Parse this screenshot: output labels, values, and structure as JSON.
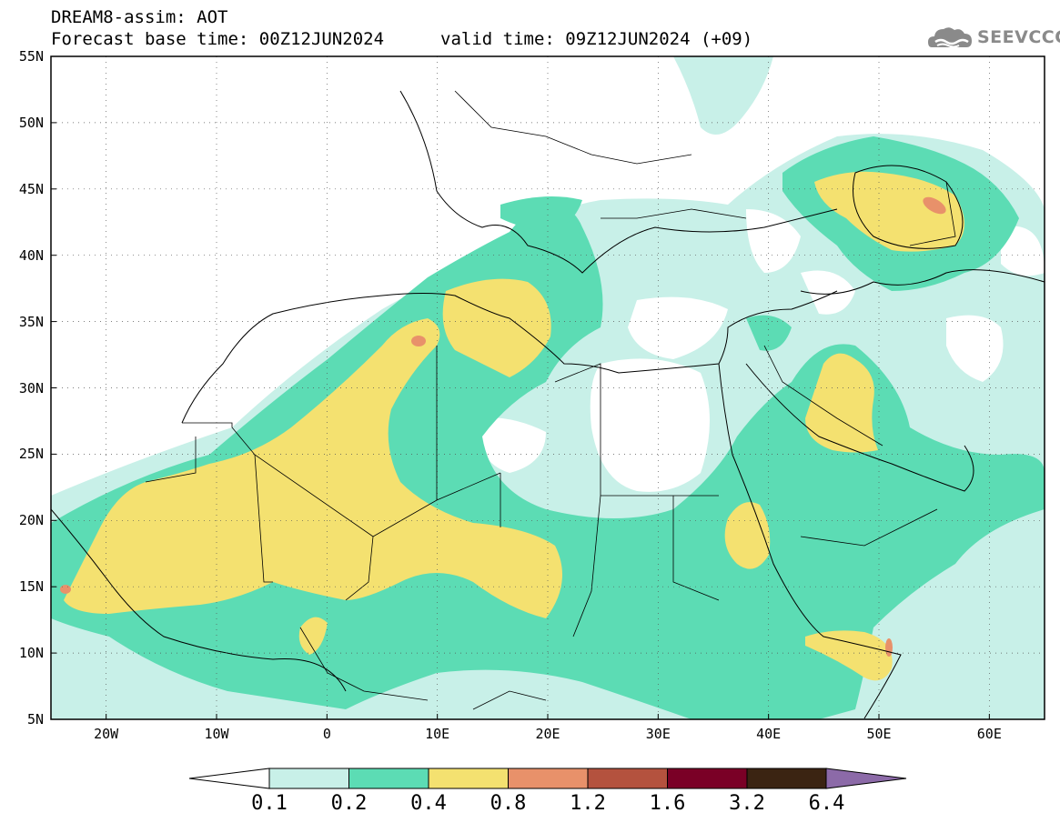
{
  "header": {
    "title": "DREAM8-assim: AOT",
    "base_time": "Forecast base time: 00Z12JUN2024",
    "valid_time": "valid time: 09Z12JUN2024 (+09)"
  },
  "logo": {
    "text": "SEEVCCC",
    "icon": "cloud-icon"
  },
  "axes": {
    "lat_labels": [
      "55N",
      "50N",
      "45N",
      "40N",
      "35N",
      "30N",
      "25N",
      "20N",
      "15N",
      "10N",
      "5N"
    ],
    "lon_labels": [
      "20W",
      "10W",
      "0",
      "10E",
      "20E",
      "30E",
      "40E",
      "50E",
      "60E"
    ]
  },
  "colorbar": {
    "labels": [
      "0.1",
      "0.2",
      "0.4",
      "0.8",
      "1.2",
      "1.6",
      "3.2",
      "6.4"
    ],
    "colors": [
      "#c8f0e8",
      "#5cdcb4",
      "#f4e170",
      "#e8916a",
      "#b4523e",
      "#7a0026",
      "#3b2412",
      "#8c6aa8"
    ]
  },
  "map_data": {
    "variable": "AOT",
    "extent": {
      "lon": [
        -25,
        65
      ],
      "lat": [
        5,
        55
      ]
    },
    "grid": "dotted",
    "hotspots": [
      {
        "region": "Tunisia/Algeria border",
        "class": "0.8-1.2"
      },
      {
        "region": "North Caspian / Kazakhstan",
        "class": "0.8-1.2"
      },
      {
        "region": "Somalia coast",
        "class": "0.8-1.2"
      }
    ]
  }
}
